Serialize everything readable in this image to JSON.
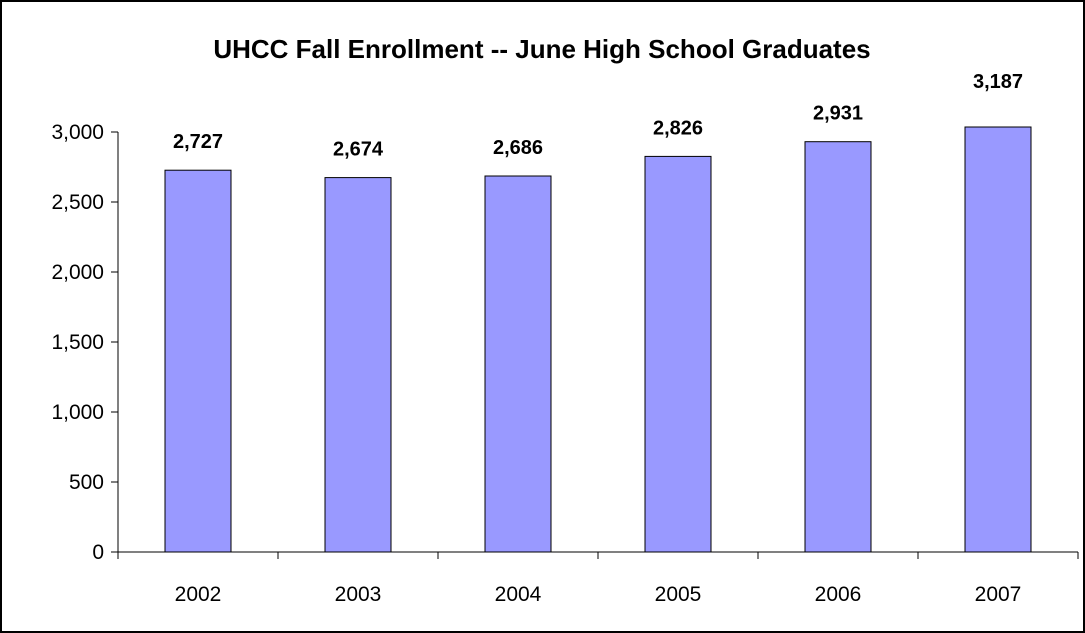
{
  "colors": {
    "bar_fill": "#9999ff",
    "bar_stroke": "#000000",
    "frame": "#000000",
    "axis": "#000000",
    "background": "#ffffff"
  },
  "chart_data": {
    "type": "bar",
    "title": "UHCC Fall Enrollment -- June High School Graduates",
    "xlabel": "",
    "ylabel": "",
    "categories": [
      "2002",
      "2003",
      "2004",
      "2005",
      "2006",
      "2007"
    ],
    "values": [
      2727,
      2674,
      2686,
      2826,
      2931,
      3187
    ],
    "data_labels": [
      "2,727",
      "2,674",
      "2,686",
      "2,826",
      "2,931",
      "3,187"
    ],
    "ylim": [
      0,
      3000
    ],
    "yticks": [
      0,
      500,
      1000,
      1500,
      2000,
      2500,
      3000
    ],
    "ytick_labels": [
      "0",
      "500",
      "1,000",
      "1,500",
      "2,000",
      "2,500",
      "3,000"
    ],
    "grid": false,
    "legend": "none"
  }
}
